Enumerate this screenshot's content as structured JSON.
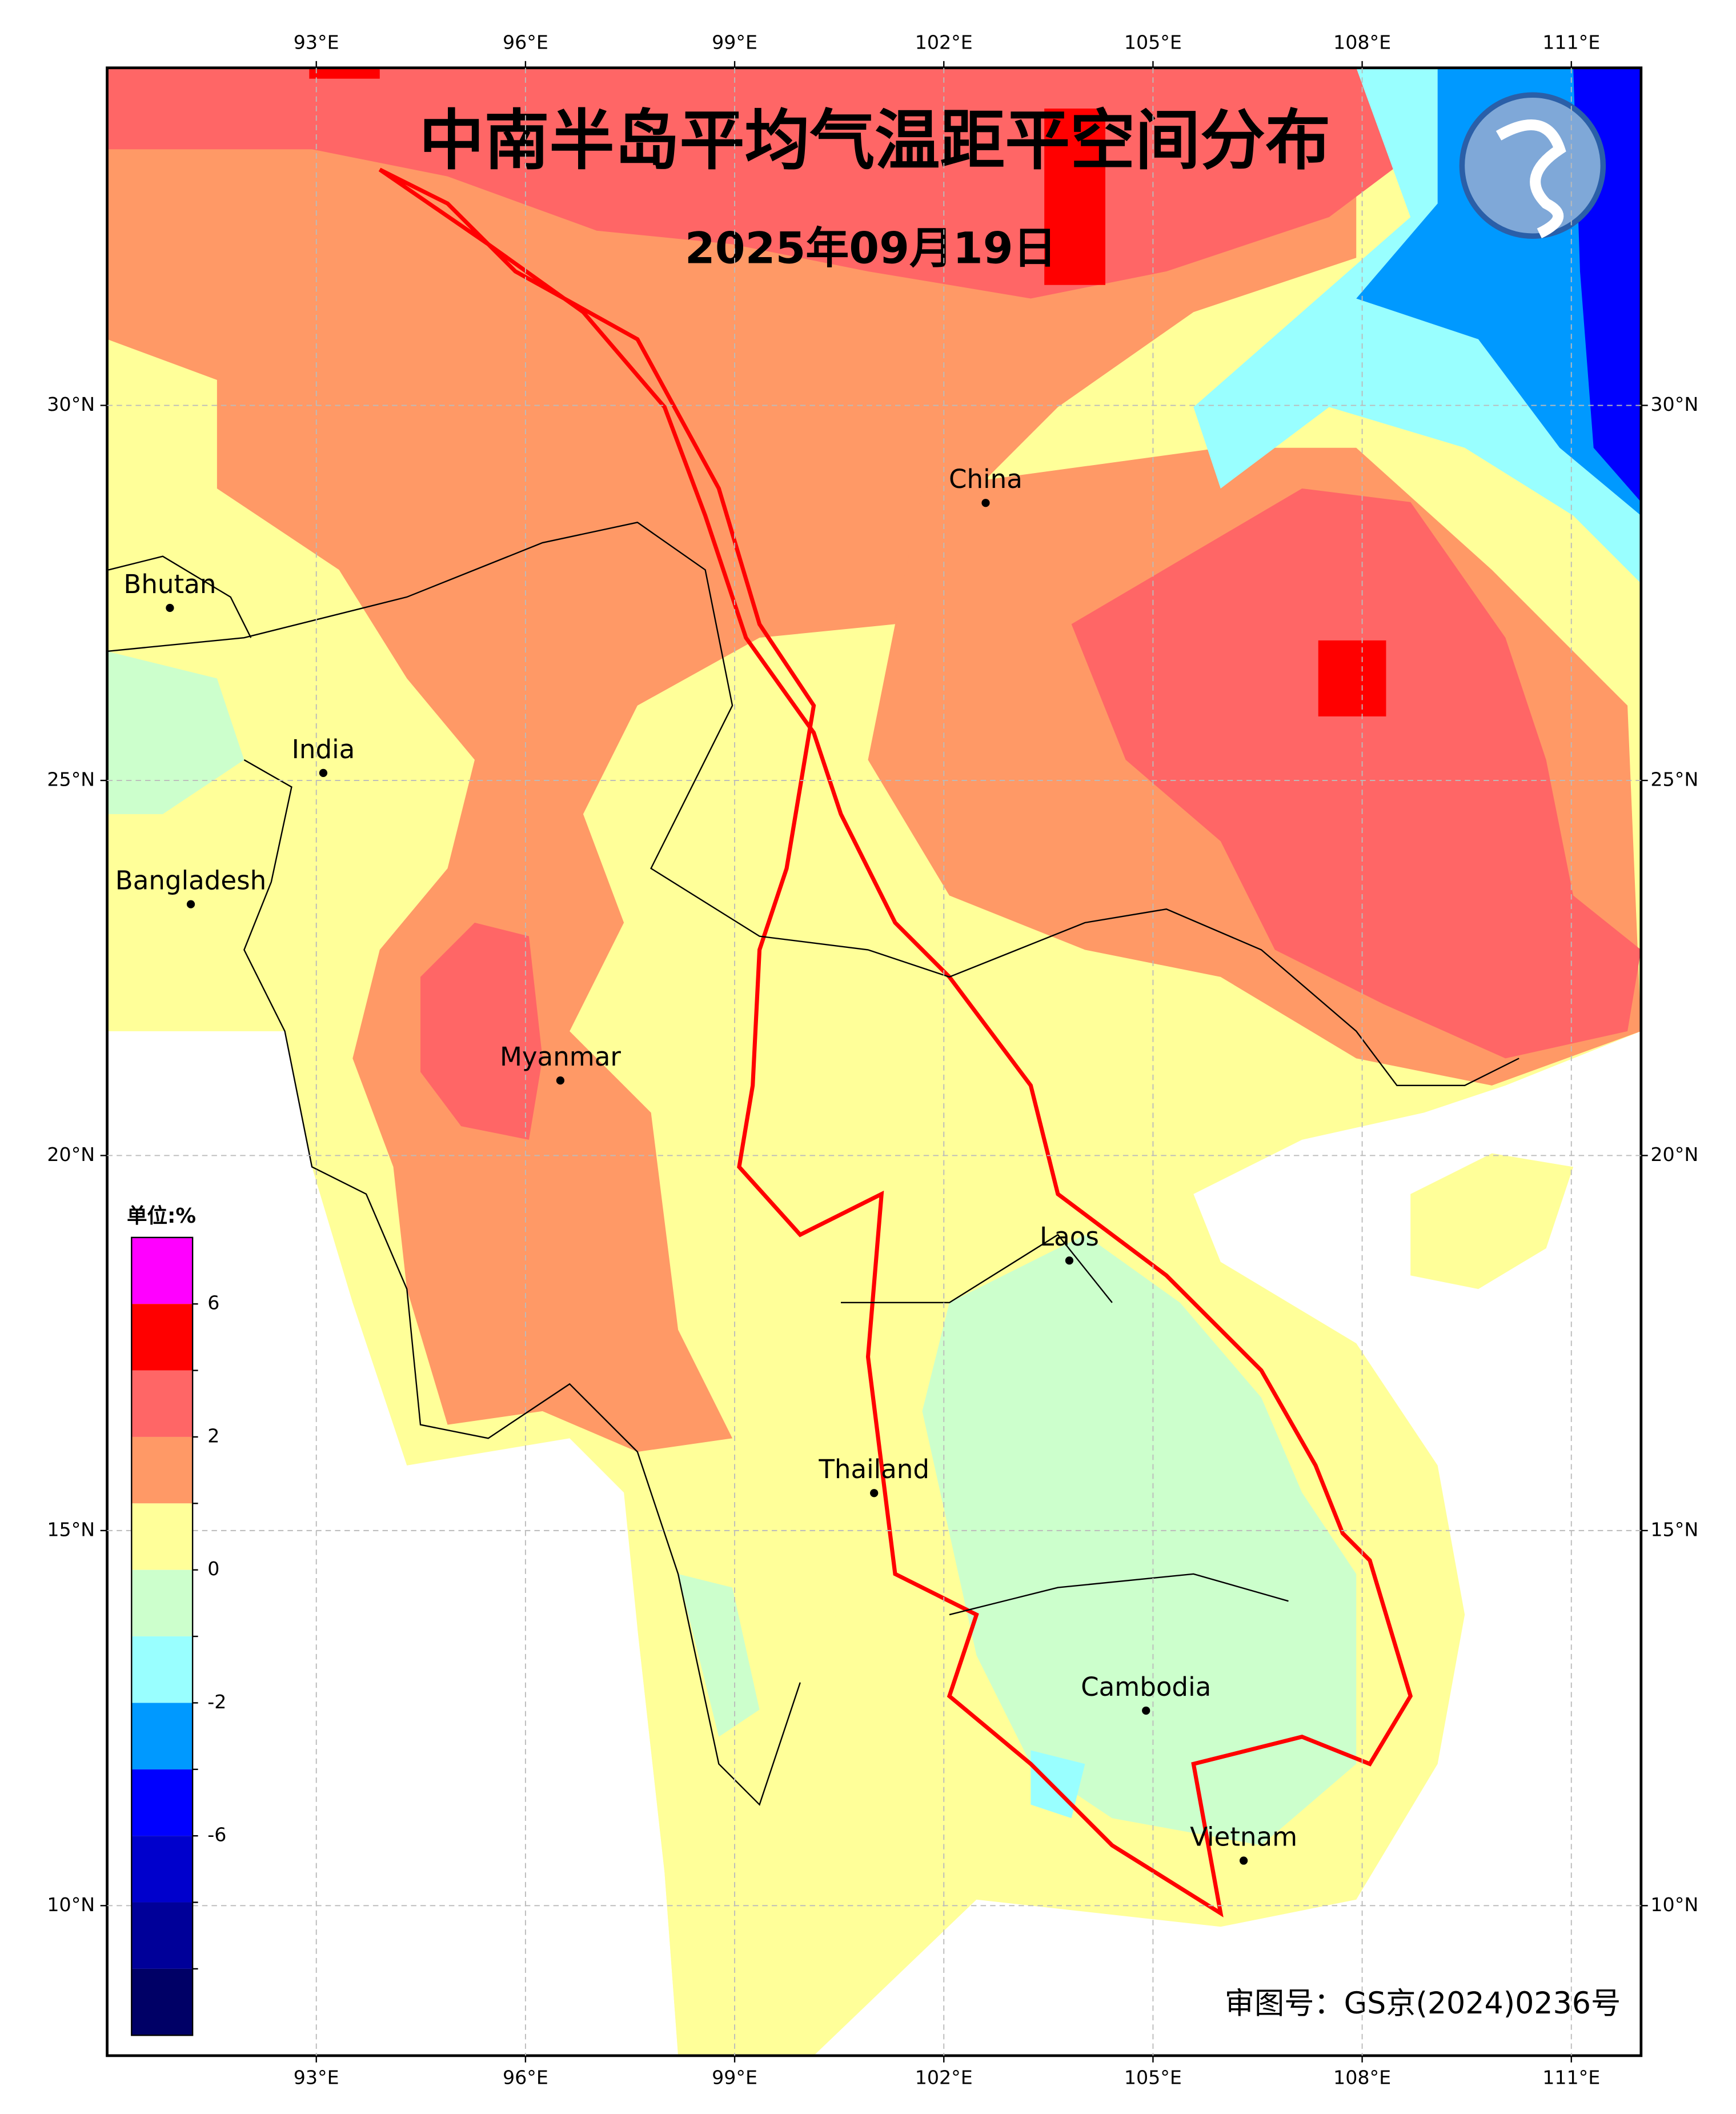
{
  "map": {
    "title": "中南半岛平均气温距平空间分布",
    "subtitle": "2025年09月19日",
    "footer": "审图号：GS京(2024)0236号",
    "xlim": [
      90,
      112
    ],
    "ylim": [
      8,
      34.5
    ],
    "xticks": [
      {
        "value": 93,
        "label": "93°E"
      },
      {
        "value": 96,
        "label": "96°E"
      },
      {
        "value": 99,
        "label": "99°E"
      },
      {
        "value": 102,
        "label": "102°E"
      },
      {
        "value": 105,
        "label": "105°E"
      },
      {
        "value": 108,
        "label": "108°E"
      },
      {
        "value": 111,
        "label": "111°E"
      }
    ],
    "yticks": [
      {
        "value": 10,
        "label": "10°N"
      },
      {
        "value": 15,
        "label": "15°N"
      },
      {
        "value": 20,
        "label": "20°N"
      },
      {
        "value": 25,
        "label": "25°N"
      },
      {
        "value": 30,
        "label": "30°N"
      }
    ],
    "grid": true,
    "cities": [
      {
        "name": "China",
        "lon": 102.6,
        "lat": 28.7
      },
      {
        "name": "Bhutan",
        "lon": 90.9,
        "lat": 27.3
      },
      {
        "name": "India",
        "lon": 93.1,
        "lat": 25.1
      },
      {
        "name": "Bangladesh",
        "lon": 91.2,
        "lat": 23.35
      },
      {
        "name": "Myanmar",
        "lon": 96.5,
        "lat": 21.0
      },
      {
        "name": "Laos",
        "lon": 103.8,
        "lat": 18.6
      },
      {
        "name": "Thailand",
        "lon": 101.0,
        "lat": 15.5
      },
      {
        "name": "Cambodia",
        "lon": 104.9,
        "lat": 12.6
      },
      {
        "name": "Vietnam",
        "lon": 106.3,
        "lat": 10.6
      }
    ],
    "colorbar": {
      "title": "单位:%",
      "colors": [
        "#ff00ff",
        "#ff0000",
        "#ff6666",
        "#ff9966",
        "#ffff99",
        "#ccffcc",
        "#99ffff",
        "#0099ff",
        "#0000ff",
        "#0000cc",
        "#000099",
        "#000066"
      ],
      "ticks": [
        "6",
        "2",
        "0",
        "-2",
        "-6"
      ]
    }
  }
}
